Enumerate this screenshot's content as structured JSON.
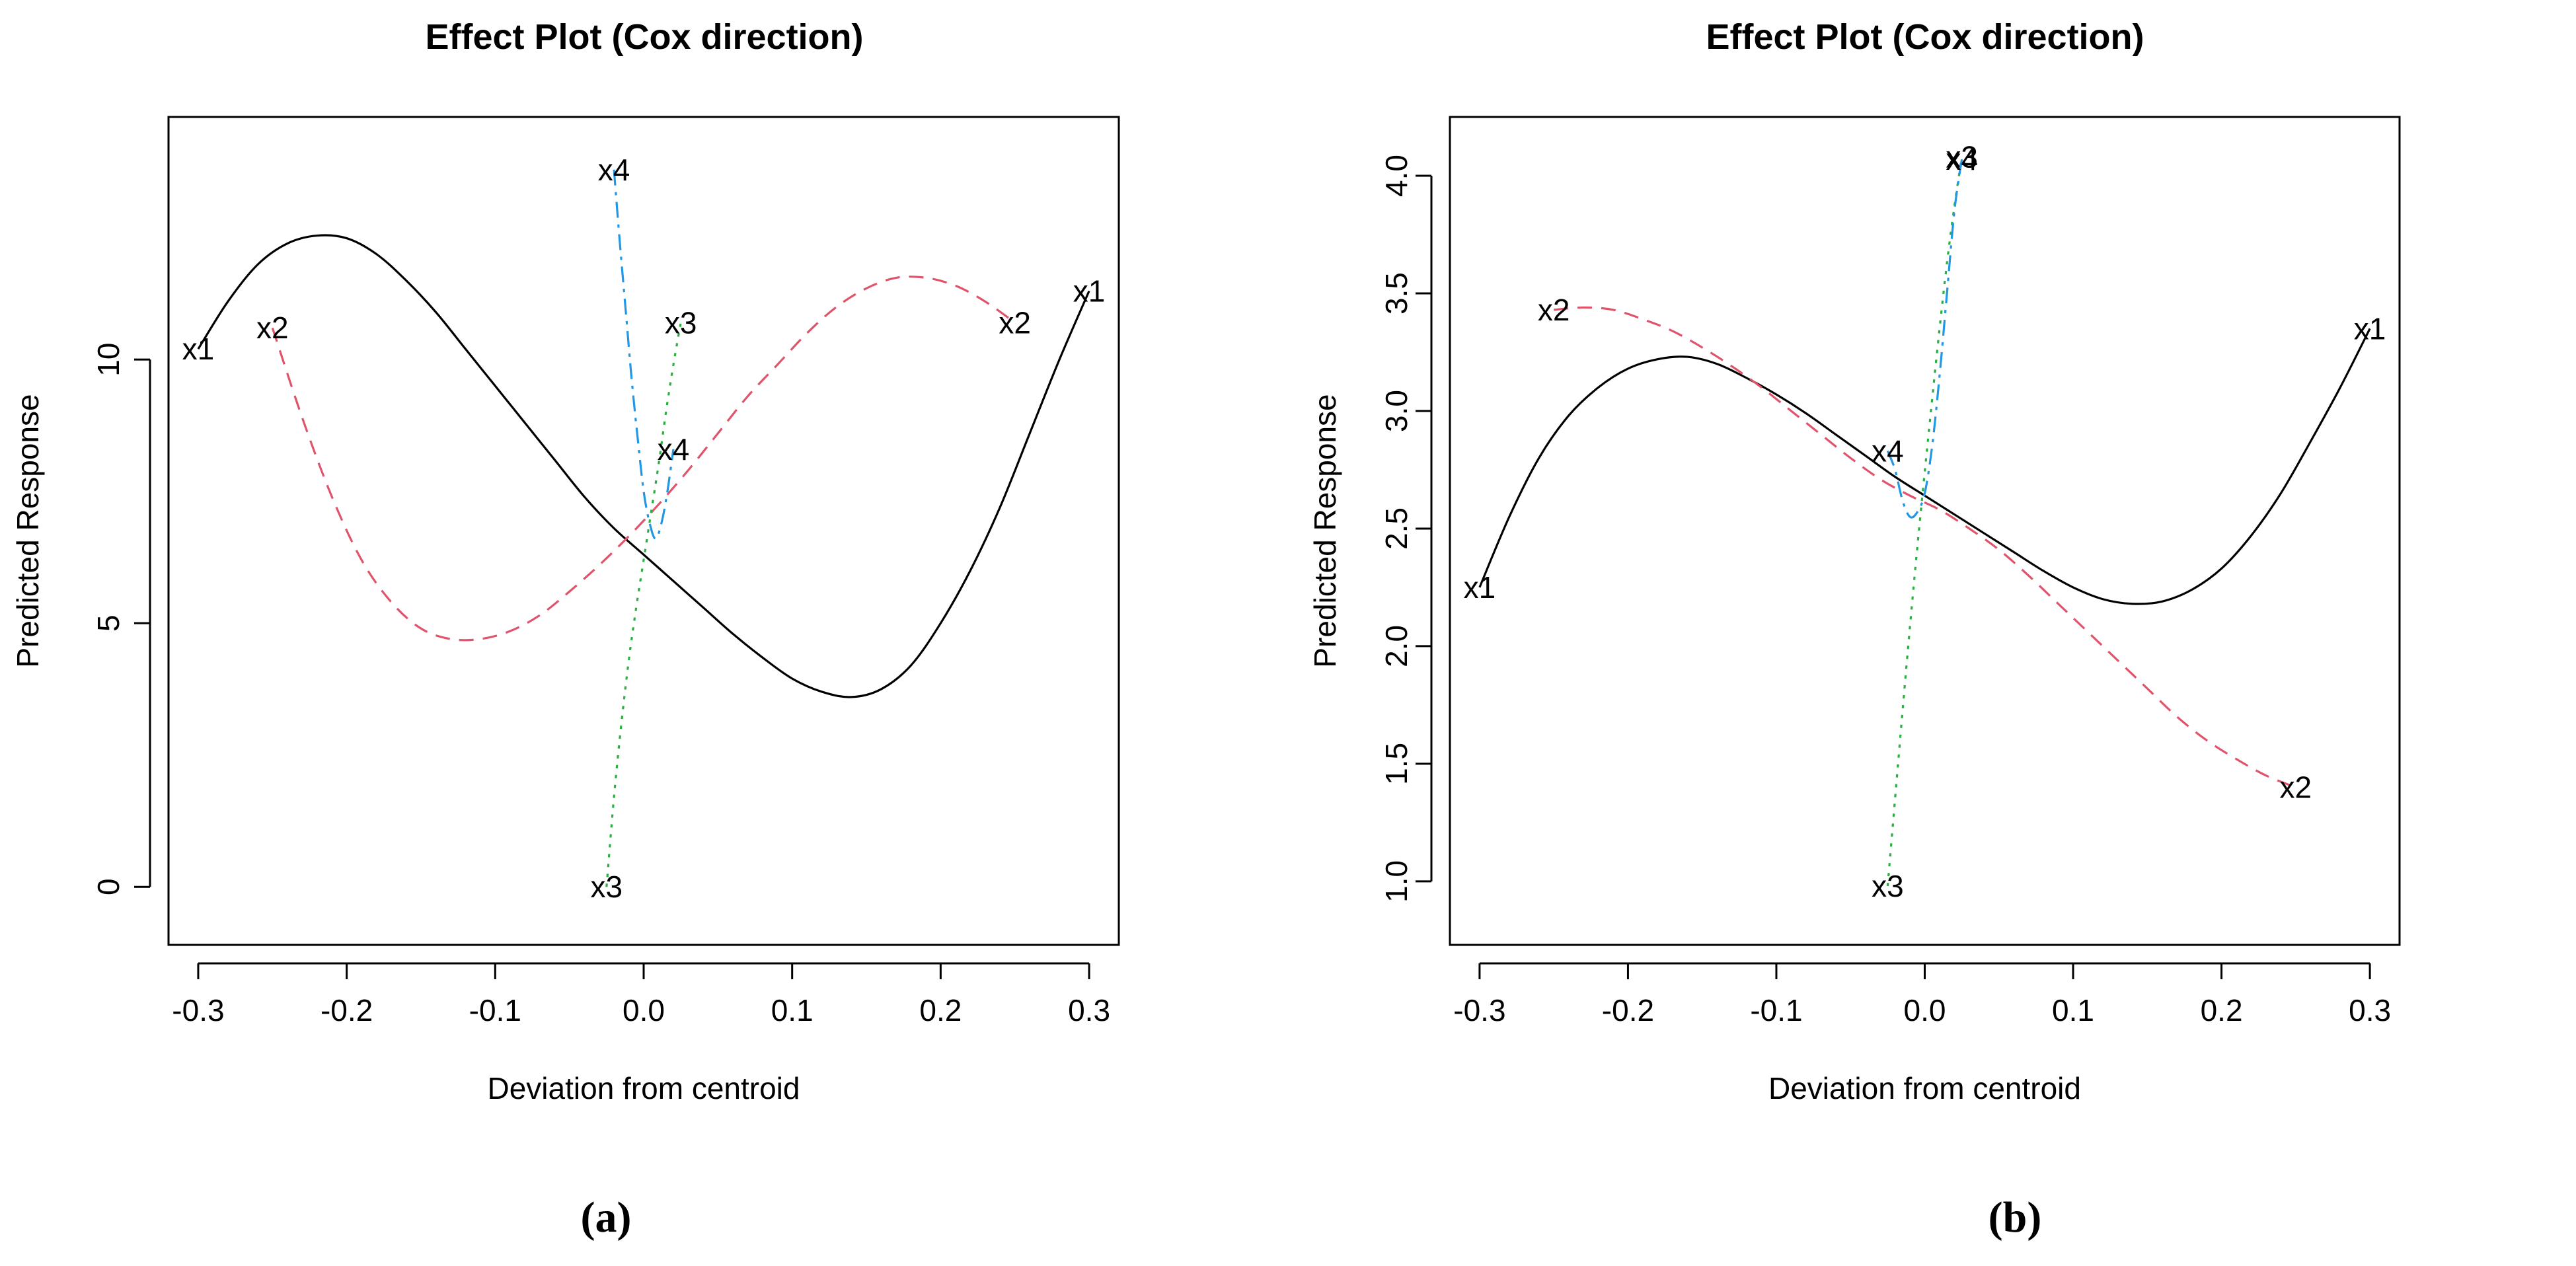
{
  "chart_data": [
    {
      "type": "line",
      "title": "Effect Plot (Cox direction)",
      "xlabel": "Deviation from centroid",
      "ylabel": "Predicted Response",
      "xlim": [
        -0.32,
        0.32
      ],
      "ylim": [
        -1.1,
        14.6
      ],
      "xticks": [
        -0.3,
        -0.2,
        -0.1,
        0.0,
        0.1,
        0.2,
        0.3
      ],
      "xtick_labels": [
        "-0.3",
        "-0.2",
        "-0.1",
        "0.0",
        "0.1",
        "0.2",
        "0.3"
      ],
      "yticks": [
        0,
        5,
        10
      ],
      "ytick_labels": [
        "0",
        "5",
        "10"
      ],
      "caption": "(a)",
      "series": [
        {
          "name": "x1",
          "color": "#000000",
          "dash": "solid",
          "x": [
            -0.3,
            -0.28,
            -0.26,
            -0.24,
            -0.22,
            -0.2,
            -0.18,
            -0.16,
            -0.14,
            -0.12,
            -0.1,
            -0.08,
            -0.06,
            -0.04,
            -0.02,
            0.0,
            0.02,
            0.04,
            0.06,
            0.08,
            0.1,
            0.12,
            0.14,
            0.16,
            0.18,
            0.2,
            0.22,
            0.24,
            0.26,
            0.28,
            0.3
          ],
          "y": [
            10.2,
            11.1,
            11.8,
            12.2,
            12.35,
            12.3,
            12.0,
            11.5,
            10.9,
            10.2,
            9.5,
            8.8,
            8.1,
            7.4,
            6.8,
            6.3,
            5.8,
            5.3,
            4.8,
            4.35,
            3.95,
            3.7,
            3.6,
            3.75,
            4.2,
            5.0,
            6.0,
            7.2,
            8.6,
            10.0,
            11.3
          ],
          "label_start": "x1",
          "label_end": "x1"
        },
        {
          "name": "x2",
          "color": "#DF536B",
          "dash": "dashed",
          "x": [
            -0.25,
            -0.23,
            -0.21,
            -0.19,
            -0.17,
            -0.15,
            -0.13,
            -0.11,
            -0.09,
            -0.07,
            -0.05,
            -0.03,
            -0.01,
            0.01,
            0.03,
            0.05,
            0.07,
            0.09,
            0.11,
            0.13,
            0.15,
            0.17,
            0.19,
            0.21,
            0.23,
            0.25
          ],
          "y": [
            10.6,
            8.9,
            7.4,
            6.2,
            5.4,
            4.9,
            4.7,
            4.7,
            4.85,
            5.15,
            5.6,
            6.1,
            6.65,
            7.25,
            7.9,
            8.6,
            9.3,
            9.9,
            10.5,
            11.0,
            11.35,
            11.55,
            11.55,
            11.4,
            11.1,
            10.7
          ],
          "label_start": "x2",
          "label_end": "x2"
        },
        {
          "name": "x3",
          "color": "#2AB040",
          "dash": "dotted",
          "x": [
            -0.025,
            -0.02,
            -0.015,
            -0.01,
            -0.005,
            0.0,
            0.005,
            0.01,
            0.015,
            0.02,
            0.025
          ],
          "y": [
            0.0,
            1.7,
            3.1,
            4.3,
            5.3,
            6.2,
            7.1,
            8.0,
            9.0,
            9.9,
            10.7
          ],
          "label_start": "x3",
          "label_end": "x3"
        },
        {
          "name": "x4",
          "color": "#2297E6",
          "dash": "dashdot",
          "x": [
            -0.02,
            -0.016,
            -0.012,
            -0.008,
            -0.004,
            0.0,
            0.004,
            0.008,
            0.012,
            0.016,
            0.02
          ],
          "y": [
            13.6,
            12.2,
            10.9,
            9.6,
            8.5,
            7.5,
            6.9,
            6.6,
            6.9,
            7.5,
            8.3
          ],
          "label_start": "x4",
          "label_end": "x4"
        }
      ]
    },
    {
      "type": "line",
      "title": "Effect Plot (Cox direction)",
      "xlabel": "Deviation from centroid",
      "ylabel": "Predicted Response",
      "xlim": [
        -0.32,
        0.32
      ],
      "ylim": [
        0.73,
        4.25
      ],
      "xticks": [
        -0.3,
        -0.2,
        -0.1,
        0.0,
        0.1,
        0.2,
        0.3
      ],
      "xtick_labels": [
        "-0.3",
        "-0.2",
        "-0.1",
        "0.0",
        "0.1",
        "0.2",
        "0.3"
      ],
      "yticks": [
        1.0,
        1.5,
        2.0,
        2.5,
        3.0,
        3.5,
        4.0
      ],
      "ytick_labels": [
        "1.0",
        "1.5",
        "2.0",
        "2.5",
        "3.0",
        "3.5",
        "4.0"
      ],
      "caption": "(b)",
      "series": [
        {
          "name": "x1",
          "color": "#000000",
          "dash": "solid",
          "x": [
            -0.3,
            -0.28,
            -0.26,
            -0.24,
            -0.22,
            -0.2,
            -0.18,
            -0.16,
            -0.14,
            -0.12,
            -0.1,
            -0.08,
            -0.06,
            -0.04,
            -0.02,
            0.0,
            0.02,
            0.04,
            0.06,
            0.08,
            0.1,
            0.12,
            0.14,
            0.16,
            0.18,
            0.2,
            0.22,
            0.24,
            0.26,
            0.28,
            0.3
          ],
          "y": [
            2.25,
            2.55,
            2.8,
            2.98,
            3.1,
            3.18,
            3.22,
            3.23,
            3.2,
            3.14,
            3.07,
            2.99,
            2.9,
            2.81,
            2.72,
            2.64,
            2.56,
            2.48,
            2.4,
            2.32,
            2.25,
            2.2,
            2.18,
            2.19,
            2.24,
            2.33,
            2.47,
            2.65,
            2.87,
            3.1,
            3.35
          ],
          "label_start": "x1",
          "label_end": "x1"
        },
        {
          "name": "x2",
          "color": "#DF536B",
          "dash": "dashed",
          "x": [
            -0.25,
            -0.23,
            -0.21,
            -0.19,
            -0.17,
            -0.15,
            -0.13,
            -0.11,
            -0.09,
            -0.07,
            -0.05,
            -0.03,
            -0.01,
            0.01,
            0.03,
            0.05,
            0.07,
            0.09,
            0.11,
            0.13,
            0.15,
            0.17,
            0.19,
            0.21,
            0.23,
            0.25
          ],
          "y": [
            3.43,
            3.44,
            3.43,
            3.39,
            3.34,
            3.27,
            3.19,
            3.1,
            3.0,
            2.9,
            2.8,
            2.71,
            2.64,
            2.58,
            2.5,
            2.41,
            2.3,
            2.18,
            2.06,
            1.94,
            1.82,
            1.7,
            1.6,
            1.52,
            1.45,
            1.4
          ],
          "label_start": "x2",
          "label_end": "x2"
        },
        {
          "name": "x3",
          "color": "#2AB040",
          "dash": "dotted",
          "x": [
            -0.025,
            -0.02,
            -0.015,
            -0.01,
            -0.005,
            0.0,
            0.005,
            0.01,
            0.015,
            0.02,
            0.025
          ],
          "y": [
            0.98,
            1.35,
            1.72,
            2.08,
            2.42,
            2.74,
            3.05,
            3.35,
            3.63,
            3.87,
            4.08
          ],
          "label_start": "x3",
          "label_end": "x3"
        },
        {
          "name": "x4",
          "color": "#2297E6",
          "dash": "dashdot",
          "x": [
            -0.025,
            -0.02,
            -0.015,
            -0.01,
            -0.005,
            0.0,
            0.005,
            0.01,
            0.015,
            0.02,
            0.025
          ],
          "y": [
            2.83,
            2.75,
            2.62,
            2.55,
            2.57,
            2.65,
            2.85,
            3.15,
            3.5,
            3.85,
            4.07
          ],
          "label_start": "x4",
          "label_end": "x4"
        }
      ]
    }
  ]
}
